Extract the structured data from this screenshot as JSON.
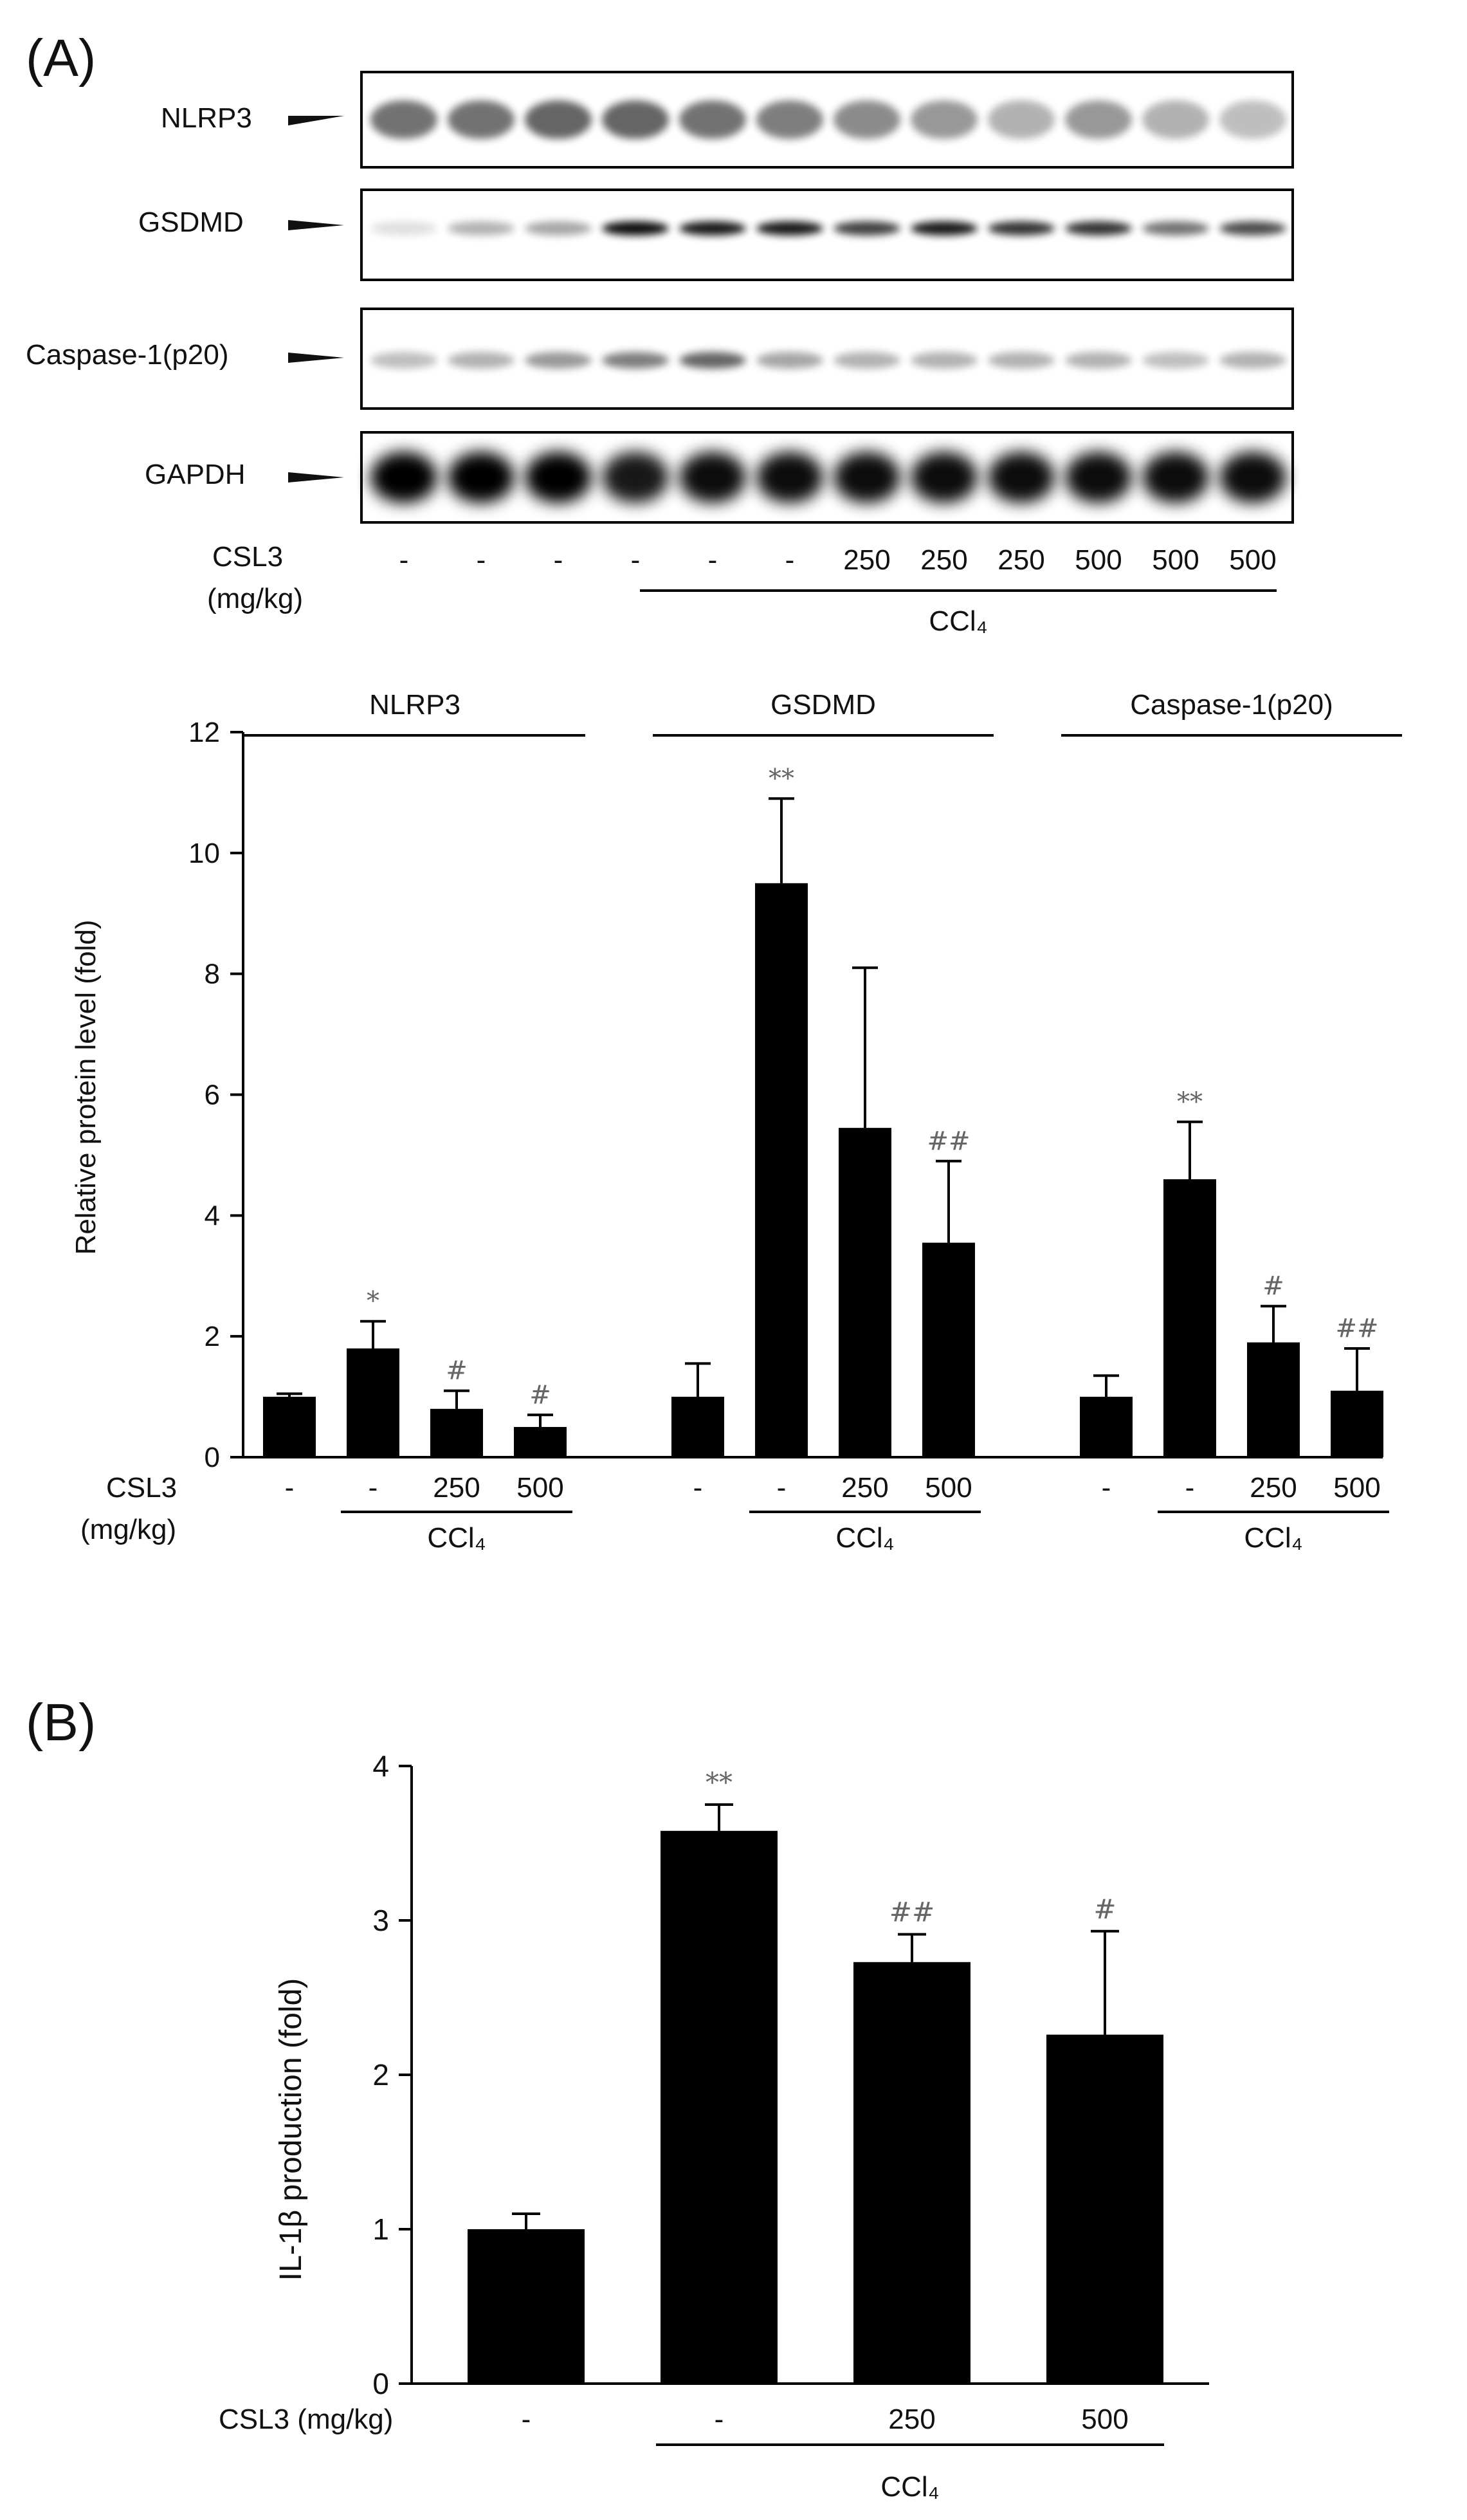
{
  "colors": {
    "bar": "#000000",
    "text": "#111111",
    "annotation": "#666666",
    "blot_background": "#ffffff"
  },
  "panel_a": {
    "label": "(A)",
    "blot": {
      "rows": [
        "NLRP3",
        "GSDMD",
        "Caspase-1(p20)",
        "GAPDH"
      ],
      "dose_label_line1": "CSL3",
      "dose_label_line2": "(mg/kg)",
      "doses": [
        "-",
        "-",
        "-",
        "-",
        "-",
        "-",
        "250",
        "250",
        "250",
        "500",
        "500",
        "500"
      ],
      "treatment": "CCl₄"
    },
    "chart_data": {
      "type": "bar",
      "ylabel": "Relative protein level (fold)",
      "ylim": [
        0,
        12
      ],
      "yticks": [
        0,
        2,
        4,
        6,
        8,
        10,
        12
      ],
      "x_label_line1": "CSL3",
      "x_label_line2": "(mg/kg)",
      "treatment_label": "CCl₄",
      "groups": [
        {
          "name": "NLRP3",
          "categories": [
            "-",
            "-",
            "250",
            "500"
          ],
          "values": [
            1.0,
            1.8,
            0.8,
            0.5
          ],
          "errors": [
            0.05,
            0.45,
            0.3,
            0.2
          ],
          "annotations": [
            "",
            "*",
            "#",
            "#"
          ]
        },
        {
          "name": "GSDMD",
          "categories": [
            "-",
            "-",
            "250",
            "500"
          ],
          "values": [
            1.0,
            9.5,
            5.45,
            3.55
          ],
          "errors": [
            0.55,
            1.4,
            2.65,
            1.35
          ],
          "annotations": [
            "",
            "**",
            "",
            "##"
          ]
        },
        {
          "name": "Caspase-1(p20)",
          "categories": [
            "-",
            "-",
            "250",
            "500"
          ],
          "values": [
            1.0,
            4.6,
            1.9,
            1.1
          ],
          "errors": [
            0.35,
            0.95,
            0.6,
            0.7
          ],
          "annotations": [
            "",
            "**",
            "#",
            "##"
          ]
        }
      ]
    }
  },
  "panel_b": {
    "label": "(B)",
    "chart_data": {
      "type": "bar",
      "ylabel": "IL-1β production (fold)",
      "ylim": [
        0,
        4
      ],
      "yticks": [
        0,
        1,
        2,
        3,
        4
      ],
      "x_label": "CSL3 (mg/kg)",
      "treatment_label": "CCl₄",
      "categories": [
        "-",
        "-",
        "250",
        "500"
      ],
      "values": [
        1.0,
        3.58,
        2.73,
        2.26
      ],
      "errors": [
        0.1,
        0.17,
        0.18,
        0.67
      ],
      "annotations": [
        "",
        "**",
        "##",
        "#"
      ]
    }
  }
}
